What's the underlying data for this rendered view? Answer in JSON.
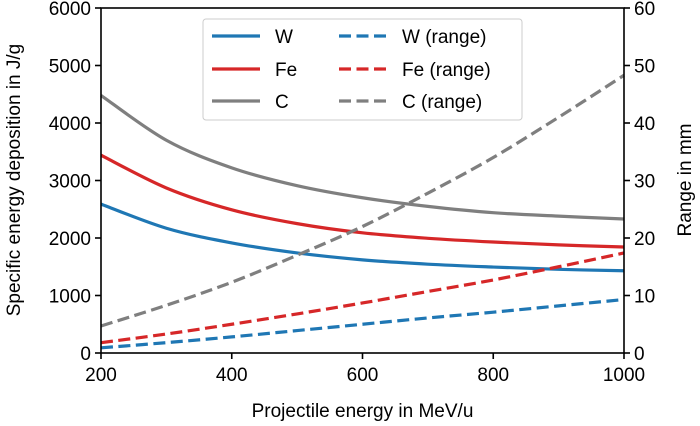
{
  "chart_data": {
    "type": "line",
    "title": "",
    "xlabel": "Projectile energy in MeV/u",
    "ylabel": "Specific energy deposition in J/g",
    "y2label": "Range in mm",
    "xlim": [
      200,
      1000
    ],
    "ylim": [
      0,
      6000
    ],
    "y2lim": [
      0,
      60
    ],
    "xticks": [
      "200",
      "400",
      "600",
      "800",
      "1000"
    ],
    "yticks": [
      "0",
      "1000",
      "2000",
      "3000",
      "4000",
      "5000",
      "6000"
    ],
    "y2ticks": [
      "0",
      "10",
      "20",
      "30",
      "40",
      "50",
      "60"
    ],
    "grid": false,
    "legend_position": "top-center",
    "x": [
      200,
      300,
      400,
      500,
      600,
      700,
      800,
      900,
      1000
    ],
    "series": [
      {
        "name": "W",
        "axis": "left",
        "style": "solid",
        "color": "#1f77b4",
        "values": [
          2590,
          2170,
          1915,
          1740,
          1620,
          1545,
          1495,
          1455,
          1430
        ]
      },
      {
        "name": "Fe",
        "axis": "left",
        "style": "solid",
        "color": "#d62728",
        "values": [
          3440,
          2870,
          2490,
          2250,
          2090,
          1995,
          1930,
          1880,
          1843
        ]
      },
      {
        "name": "C",
        "axis": "left",
        "style": "solid",
        "color": "#7f7f7f",
        "values": [
          4480,
          3700,
          3220,
          2910,
          2700,
          2550,
          2440,
          2380,
          2330
        ]
      },
      {
        "name": "W (range)",
        "axis": "right",
        "style": "dashed",
        "color": "#1f77b4",
        "values": [
          0.9,
          1.8,
          2.8,
          3.9,
          5.0,
          6.1,
          7.1,
          8.2,
          9.3
        ]
      },
      {
        "name": "Fe (range)",
        "axis": "right",
        "style": "dashed",
        "color": "#d62728",
        "values": [
          1.8,
          3.3,
          5.0,
          6.8,
          8.7,
          10.7,
          12.7,
          15.0,
          17.4
        ]
      },
      {
        "name": "C (range)",
        "axis": "right",
        "style": "dashed",
        "color": "#7f7f7f",
        "values": [
          4.7,
          8.3,
          12.3,
          17.0,
          22.0,
          27.8,
          34.0,
          41.0,
          48.3
        ]
      }
    ]
  }
}
